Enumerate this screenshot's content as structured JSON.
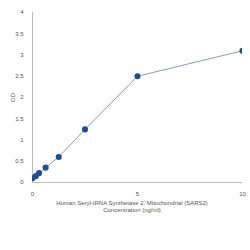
{
  "chart_data": {
    "type": "line",
    "x_label": [
      "Human Seryl-tRNA Synthetase 2, Mitochondrial (SARS2)",
      "Concentration (ng/ml)"
    ],
    "y_label": "OD",
    "x": [
      0,
      0.156,
      0.312,
      0.625,
      1.25,
      2.5,
      5,
      10
    ],
    "values": [
      0.1,
      0.15,
      0.22,
      0.35,
      0.6,
      1.25,
      2.5,
      3.1
    ],
    "color": "#1f4e8c",
    "marker": "circle",
    "xlim": [
      0,
      10
    ],
    "xticks": [
      0,
      5,
      10
    ],
    "ylim": [
      0,
      4
    ],
    "yticks": [
      0,
      0.5,
      1,
      1.5,
      2,
      2.5,
      3,
      3.5,
      4
    ],
    "grid": false
  }
}
